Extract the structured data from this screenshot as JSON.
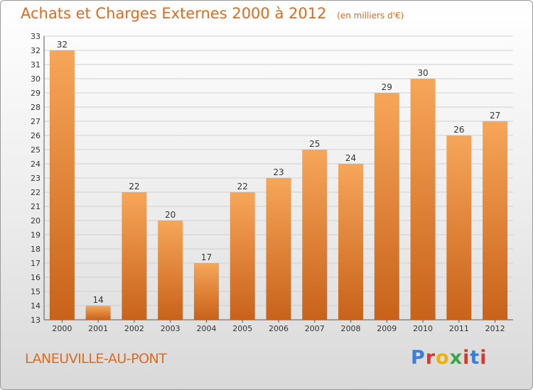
{
  "header": {
    "title": "Achats et Charges Externes 2000 à 2012",
    "unit": "(en milliers d'€)"
  },
  "footer": {
    "location": "LANEUVILLE-AU-PONT",
    "logo_text": "Proxiti",
    "logo_colors": [
      "#3a7fd5",
      "#e0342a",
      "#f0b000",
      "#3aa74a",
      "#e0342a",
      "#3a7fd5",
      "#e0342a"
    ]
  },
  "colors": {
    "bar_light": "#f7a659",
    "bar_dark": "#c8621a",
    "text_accent": "#e06a1a"
  },
  "chart_data": {
    "type": "bar",
    "title": "Achats et Charges Externes 2000 à 2012",
    "xlabel": "",
    "ylabel": "",
    "categories": [
      "2000",
      "2001",
      "2002",
      "2003",
      "2004",
      "2005",
      "2006",
      "2007",
      "2008",
      "2009",
      "2010",
      "2011",
      "2012"
    ],
    "values": [
      32,
      14,
      22,
      20,
      17,
      22,
      23,
      25,
      24,
      29,
      30,
      26,
      27
    ],
    "ylim": [
      13,
      33
    ],
    "yticks": [
      13,
      14,
      15,
      16,
      17,
      18,
      19,
      20,
      21,
      22,
      23,
      24,
      25,
      26,
      27,
      28,
      29,
      30,
      31,
      32,
      33
    ],
    "grid": true,
    "legend": "none"
  }
}
